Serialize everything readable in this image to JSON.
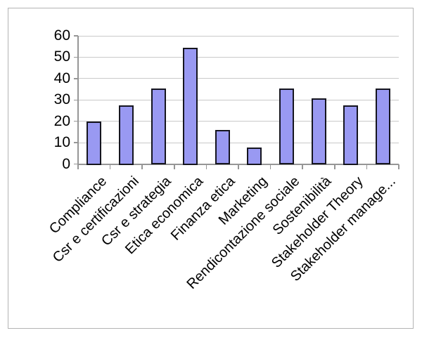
{
  "chart_data": {
    "type": "bar",
    "title": "",
    "xlabel": "",
    "ylabel": "",
    "categories": [
      "Compliance",
      "Csr e certificazioni",
      "Csr e strategia",
      "Etica economica",
      "Finanza etica",
      "Marketing",
      "Rendicontazione sociale",
      "Sostenibilità",
      "Stakeholder Theory",
      "Stakeholder manage..."
    ],
    "values": [
      19.5,
      27,
      35,
      54,
      15.5,
      7.5,
      35,
      30.5,
      27,
      35
    ],
    "ylim": [
      0,
      60
    ],
    "yticks": [
      0,
      10,
      20,
      30,
      40,
      50,
      60
    ],
    "grid": true,
    "legend": false,
    "colors": {
      "bar_fill": "#9999f2",
      "bar_border": "#15151f",
      "gridline": "#c9c9c9",
      "axis": "#969696",
      "frame_border": "#b3b3b3",
      "text": "#000000",
      "background": "#ffffff"
    }
  }
}
